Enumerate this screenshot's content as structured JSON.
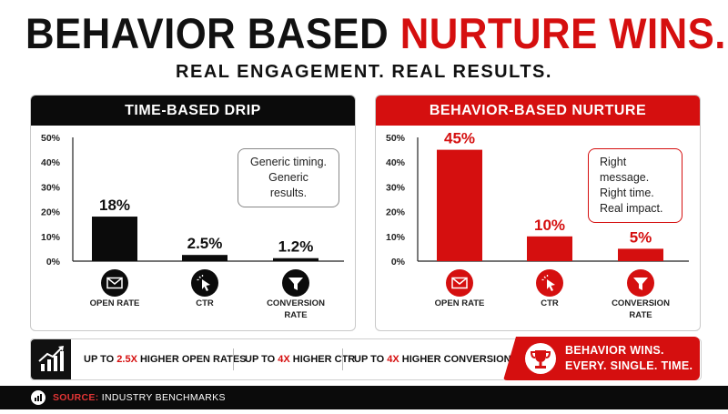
{
  "header": {
    "title_part1": "BEHAVIOR BASED",
    "title_part2": "NURTURE WINS.",
    "subtitle": "REAL ENGAGEMENT. REAL RESULTS."
  },
  "colors": {
    "accent": "#d50f0f",
    "dark": "#0b0b0b"
  },
  "chart_data": [
    {
      "type": "bar",
      "title": "TIME-BASED DRIP",
      "categories": [
        "OPEN RATE",
        "CTR",
        "CONVERSION RATE"
      ],
      "category_lines": [
        [
          "OPEN RATE"
        ],
        [
          "CTR"
        ],
        [
          "CONVERSION",
          "RATE"
        ]
      ],
      "values": [
        18,
        2.5,
        1.2
      ],
      "value_labels": [
        "18%",
        "2.5%",
        "1.2%"
      ],
      "y_ticks": [
        "0%",
        "10%",
        "20%",
        "30%",
        "40%",
        "50%"
      ],
      "ylim": [
        0,
        50
      ],
      "bar_color": "#0b0b0b",
      "icons": [
        "envelope-icon",
        "cursor-click-icon",
        "funnel-icon"
      ],
      "callout": [
        "Generic timing.",
        "Generic results."
      ]
    },
    {
      "type": "bar",
      "title": "BEHAVIOR-BASED NURTURE",
      "categories": [
        "OPEN RATE",
        "CTR",
        "CONVERSION RATE"
      ],
      "category_lines": [
        [
          "OPEN RATE"
        ],
        [
          "CTR"
        ],
        [
          "CONVERSION",
          "RATE"
        ]
      ],
      "values": [
        45,
        10,
        5
      ],
      "value_labels": [
        "45%",
        "10%",
        "5%"
      ],
      "y_ticks": [
        "0%",
        "10%",
        "20%",
        "30%",
        "40%",
        "50%"
      ],
      "ylim": [
        0,
        50
      ],
      "bar_color": "#d50f0f",
      "icons": [
        "envelope-icon",
        "cursor-click-icon",
        "funnel-icon"
      ],
      "callout": [
        "Right message.",
        "Right time.",
        "Real impact."
      ]
    }
  ],
  "strip": {
    "icon": "growth-chart-icon",
    "items": [
      {
        "pre": "UP TO ",
        "hl": "2.5X",
        "post": " HIGHER OPEN RATES"
      },
      {
        "pre": "UP TO ",
        "hl": "4X",
        "post": " HIGHER CTR"
      },
      {
        "pre": "UP TO ",
        "hl": "4X",
        "post": " HIGHER CONVERSIONS"
      }
    ],
    "arrow": "›"
  },
  "wins": {
    "icon": "trophy-icon",
    "line1": "BEHAVIOR WINS.",
    "line2": "EVERY. SINGLE. TIME."
  },
  "source": {
    "icon": "bar-chart-icon",
    "label": "SOURCE:",
    "text": "INDUSTRY BENCHMARKS"
  }
}
